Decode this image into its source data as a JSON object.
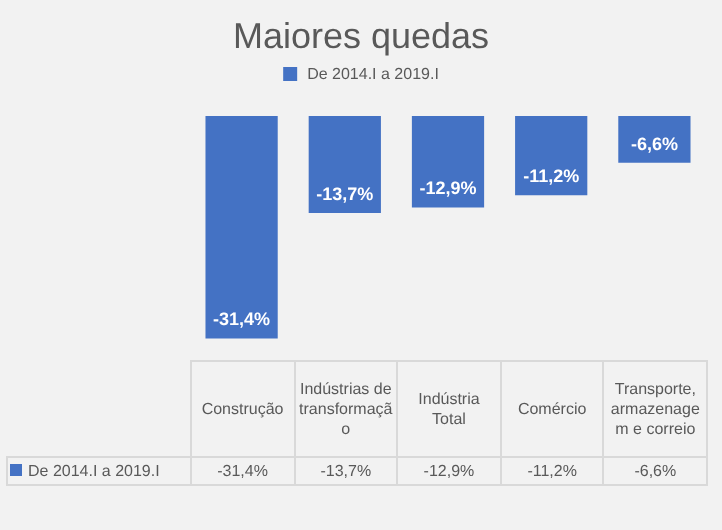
{
  "chart_data": {
    "type": "bar",
    "title": "Maiores quedas",
    "categories": [
      "Construção",
      "Indústrias de transformação",
      "Indústria Total",
      "Comércio",
      "Transporte, armazenagem e correio"
    ],
    "series": [
      {
        "name": "De 2014.I a 2019.I",
        "color": "#4472c4",
        "values": [
          -31.4,
          -13.7,
          -12.9,
          -11.2,
          -6.6
        ],
        "value_labels": [
          "-31,4%",
          "-13,7%",
          "-12,9%",
          "-11,2%",
          "-6,6%"
        ]
      }
    ],
    "legend": "top"
  }
}
